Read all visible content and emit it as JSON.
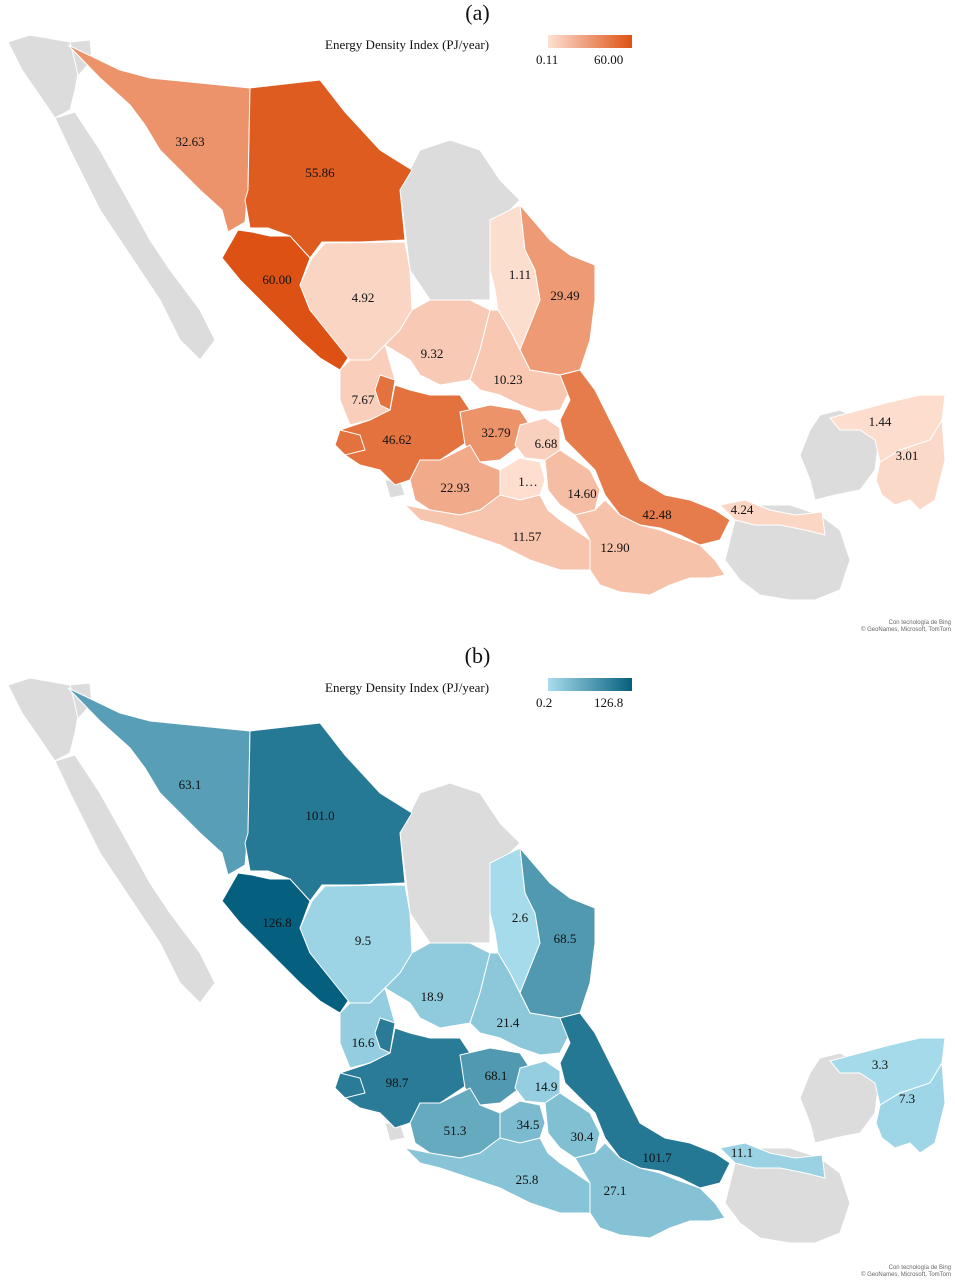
{
  "panels": [
    {
      "label": "(a)",
      "legend": {
        "title": "Energy Density Index (PJ/year)",
        "min": "0.11",
        "max": "60.00",
        "color_low": "#fde0d2",
        "color_high": "#dd5214"
      },
      "attribution": [
        "Con tecnología de Bing",
        "© GeoNames, Microsoft, TomTom"
      ],
      "values": {
        "sonora": "32.63",
        "chihuahua": "55.86",
        "sinaloa": "60.00",
        "durango": "4.92",
        "nuevo_leon": "1.11",
        "tamaulipas": "29.49",
        "zacatecas": "9.32",
        "san_luis_potosi": "10.23",
        "nayarit": "7.67",
        "jalisco": "46.62",
        "guanajuato": "32.79",
        "hidalgo": "6.68",
        "michoacan": "22.93",
        "mexico": "1…",
        "puebla": "14.60",
        "veracruz": "42.48",
        "tabasco": "4.24",
        "guerrero": "11.57",
        "oaxaca": "12.90",
        "yucatan": "1.44",
        "quintana_roo": "3.01"
      }
    },
    {
      "label": "(b)",
      "legend": {
        "title": "Energy Density Index (PJ/year)",
        "min": "0.2",
        "max": "126.8",
        "color_low": "#a8dded",
        "color_high": "#055f7e"
      },
      "attribution": [
        "Con tecnología de Bing",
        "© GeoNames, Microsoft, TomTom"
      ],
      "values": {
        "sonora": "63.1",
        "chihuahua": "101.0",
        "sinaloa": "126.8",
        "durango": "9.5",
        "nuevo_leon": "2.6",
        "tamaulipas": "68.5",
        "zacatecas": "18.9",
        "san_luis_potosi": "21.4",
        "nayarit": "16.6",
        "jalisco": "98.7",
        "guanajuato": "68.1",
        "hidalgo": "14.9",
        "michoacan": "51.3",
        "mexico": "34.5",
        "puebla": "30.4",
        "veracruz": "101.7",
        "tabasco": "11.1",
        "guerrero": "25.8",
        "oaxaca": "27.1",
        "yucatan": "3.3",
        "quintana_roo": "7.3"
      }
    }
  ],
  "colors": {
    "no_data": "#dcdcdc",
    "border": "#ffffff"
  }
}
